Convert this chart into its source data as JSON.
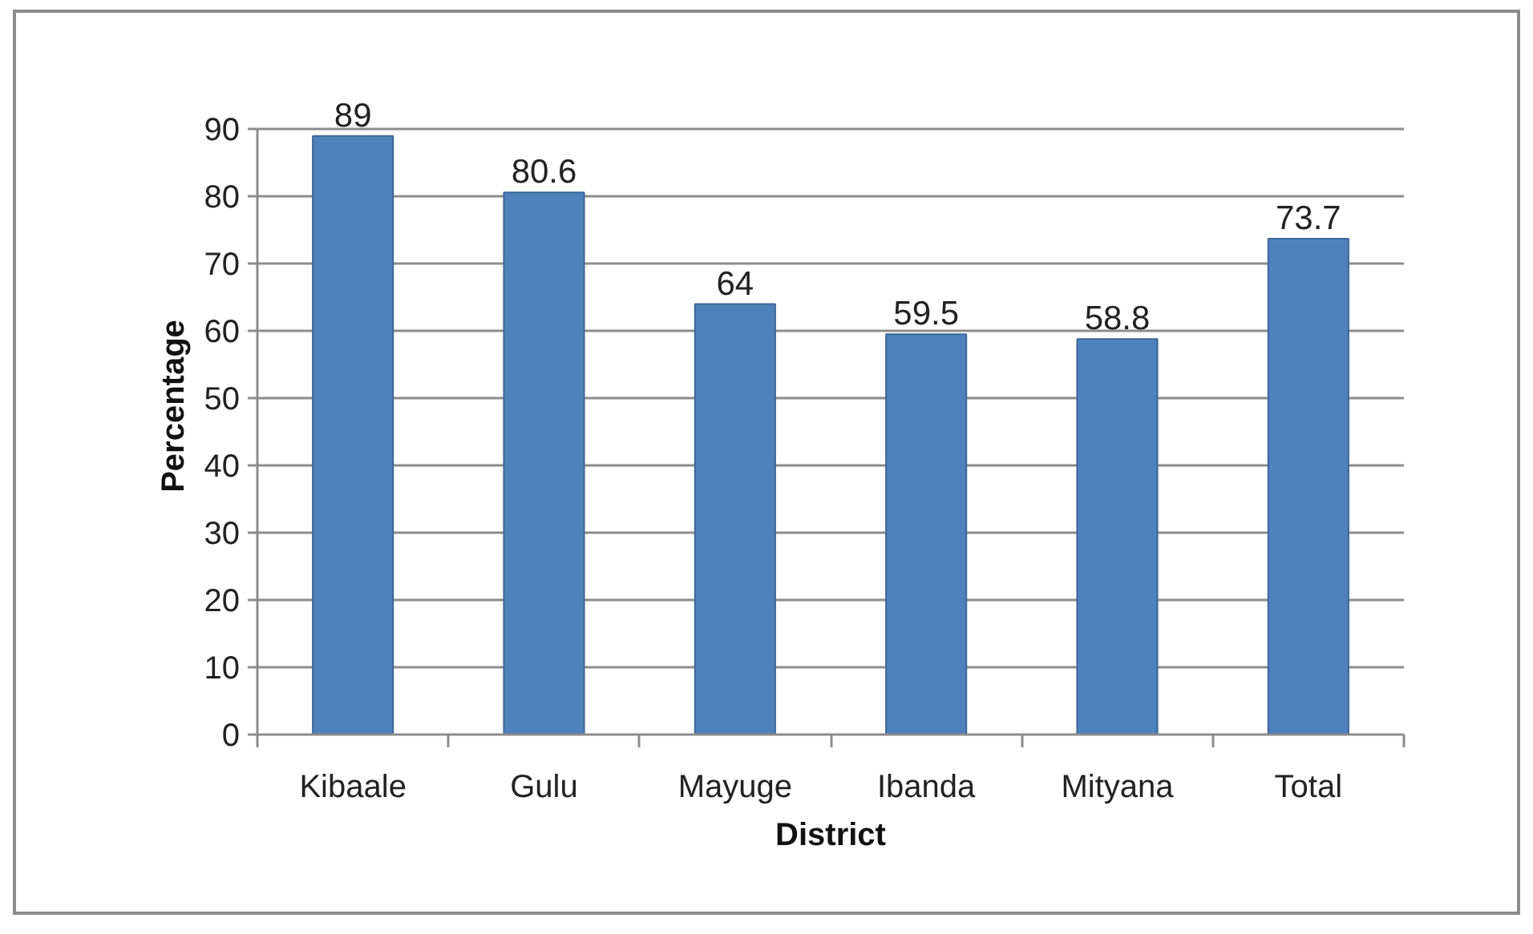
{
  "chart_data": {
    "type": "bar",
    "xlabel": "District",
    "ylabel": "Percentage",
    "categories": [
      "Kibaale",
      "Gulu",
      "Mayuge",
      "Ibanda",
      "Mityana",
      "Total"
    ],
    "values": [
      89,
      80.6,
      64,
      59.5,
      58.8,
      73.7
    ],
    "color": "#4f81bd",
    "ylim": [
      0,
      90
    ],
    "yticks": [
      0,
      10,
      20,
      30,
      40,
      50,
      60,
      70,
      80,
      90
    ],
    "grid": "y",
    "data_labels": true
  }
}
